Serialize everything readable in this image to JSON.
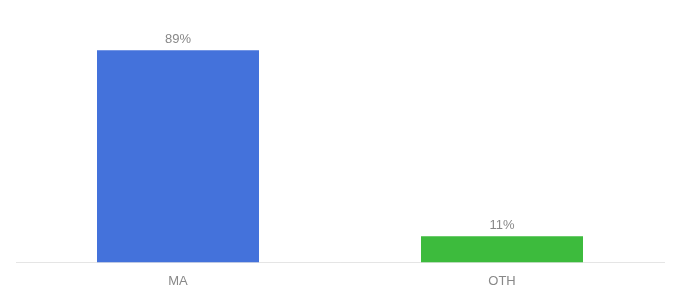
{
  "chart_data": {
    "type": "bar",
    "categories": [
      "MA",
      "OTH"
    ],
    "values": [
      89,
      11
    ],
    "value_labels": [
      "89%",
      "11%"
    ],
    "colors": [
      "#4472DB",
      "#3DBB3D"
    ],
    "ylim": [
      0,
      100
    ],
    "grid": false,
    "data_labels": true,
    "tick_labels": "x"
  }
}
